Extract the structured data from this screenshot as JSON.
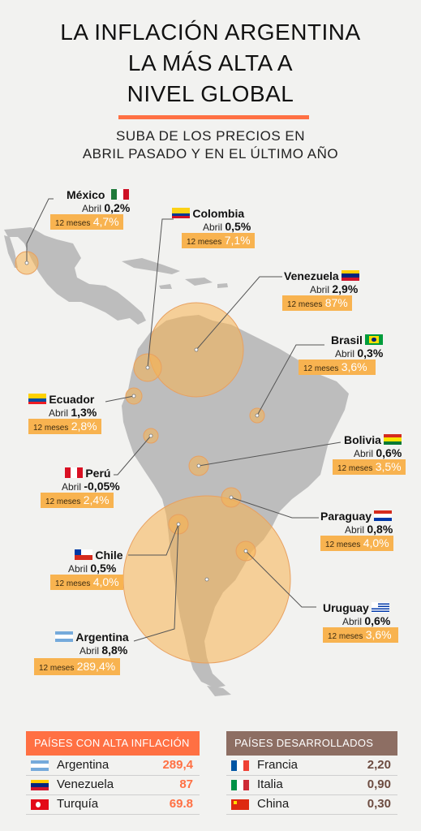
{
  "header": {
    "title_line1": "LA INFLACIÓN ARGENTINA",
    "title_line2": "LA MÁS ALTA A",
    "title_line3": "NIVEL GLOBAL",
    "subtitle_line1": "SUBA DE LOS PRECIOS EN",
    "subtitle_line2": "ABRIL PASADO Y EN EL ÚLTIMO AÑO"
  },
  "labels": {
    "abril": "Abril",
    "doce_meses": "12 meses"
  },
  "colors": {
    "map_land": "#b9b9b9",
    "bubble": "#f8b350",
    "bubble_edge": "#e8a060",
    "accent": "#ff7043",
    "box_bg": "#f8b350",
    "table_high_header": "#ff7043",
    "table_dev_header": "#8d6e63"
  },
  "countries": [
    {
      "name": "México",
      "abril": "0,2%",
      "doce": "4,7%",
      "flag": "mexico-flag"
    },
    {
      "name": "Colombia",
      "abril": "0,5%",
      "doce": "7,1%",
      "flag": "colombia-flag"
    },
    {
      "name": "Venezuela",
      "abril": "2,9%",
      "doce": "87%",
      "flag": "venezuela-flag"
    },
    {
      "name": "Brasil",
      "abril": "0,3%",
      "doce": "3,6%",
      "flag": "brasil-flag"
    },
    {
      "name": "Ecuador",
      "abril": "1,3%",
      "doce": "2,8%",
      "flag": "ecuador-flag"
    },
    {
      "name": "Bolivia",
      "abril": "0,6%",
      "doce": "3,5%",
      "flag": "bolivia-flag"
    },
    {
      "name": "Perú",
      "abril": "-0,05%",
      "doce": "2,4%",
      "flag": "peru-flag"
    },
    {
      "name": "Paraguay",
      "abril": "0,8%",
      "doce": "4,0%",
      "flag": "paraguay-flag"
    },
    {
      "name": "Chile",
      "abril": "0,5%",
      "doce": "4,0%",
      "flag": "chile-flag"
    },
    {
      "name": "Uruguay",
      "abril": "0,6%",
      "doce": "3,6%",
      "flag": "uruguay-flag"
    },
    {
      "name": "Argentina",
      "abril": "8,8%",
      "doce": "289,4%",
      "flag": "argentina-flag"
    }
  ],
  "tables": {
    "high": {
      "title": "PAÍSES CON ALTA INFLACIÓN",
      "rows": [
        {
          "country": "Argentina",
          "value": "289,4",
          "flag": "argentina-flag"
        },
        {
          "country": "Venezuela",
          "value": "87",
          "flag": "venezuela-flag"
        },
        {
          "country": "Turquía",
          "value": "69.8",
          "flag": "turquia-flag"
        }
      ]
    },
    "developed": {
      "title": "PAÍSES DESARROLLADOS",
      "rows": [
        {
          "country": "Francia",
          "value": "2,20",
          "flag": "francia-flag"
        },
        {
          "country": "Italia",
          "value": "0,90",
          "flag": "italia-flag"
        },
        {
          "country": "China",
          "value": "0,30",
          "flag": "china-flag"
        }
      ]
    }
  }
}
